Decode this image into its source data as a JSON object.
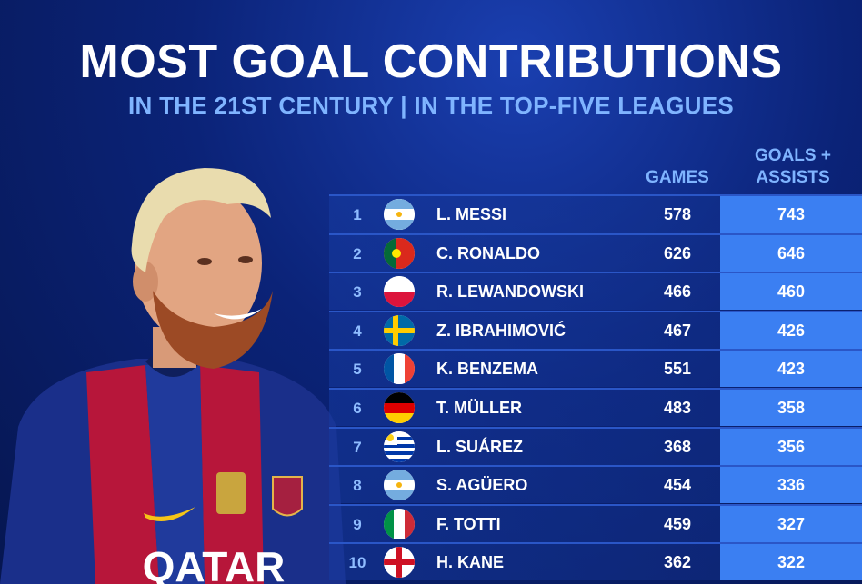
{
  "header": {
    "title": "MOST GOAL CONTRIBUTIONS",
    "subtitle": "IN THE 21ST CENTURY | IN THE TOP-FIVE LEAGUES"
  },
  "table": {
    "col_games": "GAMES",
    "col_ga": "GOALS + ASSISTS",
    "rows": [
      {
        "rank": "1",
        "flag": "argentina-flag-icon",
        "name": "L. MESSI",
        "games": "578",
        "ga": "743"
      },
      {
        "rank": "2",
        "flag": "portugal-flag-icon",
        "name": "C. RONALDO",
        "games": "626",
        "ga": "646"
      },
      {
        "rank": "3",
        "flag": "poland-flag-icon",
        "name": "R. LEWANDOWSKI",
        "games": "466",
        "ga": "460"
      },
      {
        "rank": "4",
        "flag": "sweden-flag-icon",
        "name": "Z. IBRAHIMOVIĆ",
        "games": "467",
        "ga": "426"
      },
      {
        "rank": "5",
        "flag": "france-flag-icon",
        "name": "K. BENZEMA",
        "games": "551",
        "ga": "423"
      },
      {
        "rank": "6",
        "flag": "germany-flag-icon",
        "name": "T. MÜLLER",
        "games": "483",
        "ga": "358"
      },
      {
        "rank": "7",
        "flag": "uruguay-flag-icon",
        "name": "L. SUÁREZ",
        "games": "368",
        "ga": "356"
      },
      {
        "rank": "8",
        "flag": "argentina-flag-icon",
        "name": "S. AGÜERO",
        "games": "454",
        "ga": "336"
      },
      {
        "rank": "9",
        "flag": "italy-flag-icon",
        "name": "F. TOTTI",
        "games": "459",
        "ga": "327"
      },
      {
        "rank": "10",
        "flag": "england-flag-icon",
        "name": "H. KANE",
        "games": "362",
        "ga": "322"
      }
    ]
  },
  "colors": {
    "background": "#0b2378",
    "accent": "#3b7ff2",
    "subtitle": "#7fb4ff"
  },
  "player_image": {
    "shirt_text": "QATAR"
  }
}
